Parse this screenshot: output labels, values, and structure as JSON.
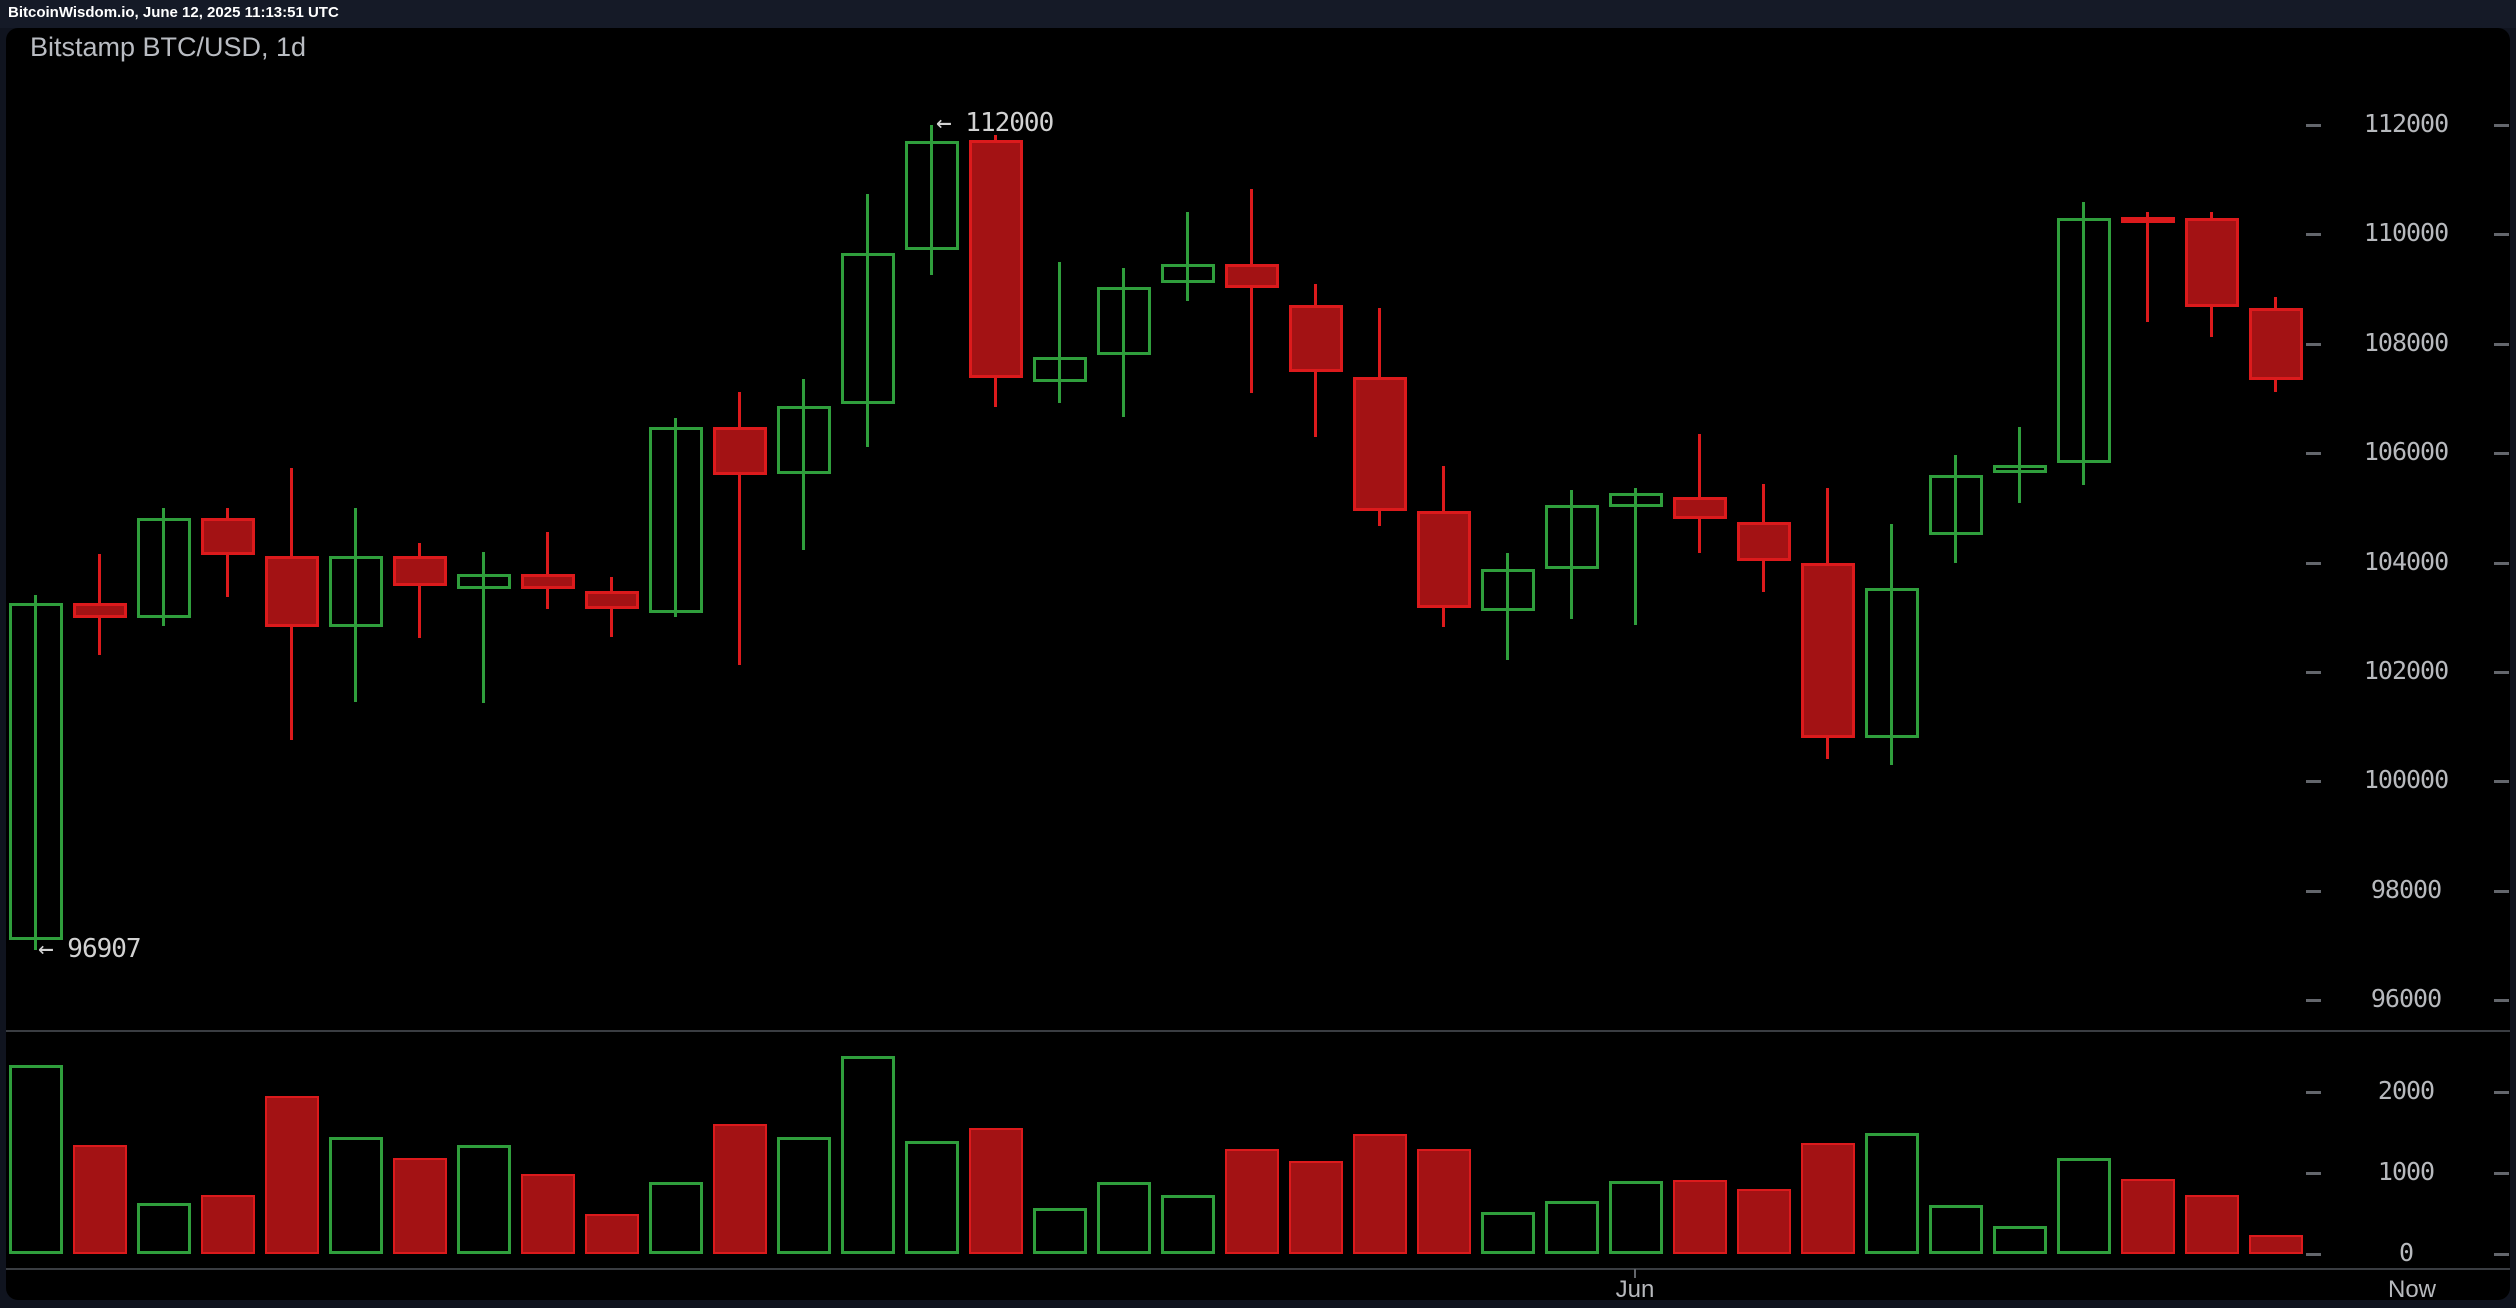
{
  "header": {
    "title": "BitcoinWisdom.io, June 12, 2025 11:13:51 UTC"
  },
  "chart": {
    "title": "Bitstamp BTC/USD, 1d"
  },
  "axes": {
    "price_ticks": [
      "112000",
      "110000",
      "108000",
      "106000",
      "104000",
      "102000",
      "100000",
      "98000",
      "96000"
    ],
    "volume_ticks": [
      "2000",
      "1000",
      "0"
    ],
    "x_labels": [
      "Jun",
      "Now"
    ]
  },
  "annotations": {
    "high_label": "← 112000",
    "low_label": "← 96907",
    "high_value": 112000,
    "low_value": 96907
  },
  "colors": {
    "page_background": "#10141f",
    "topbar_background": "#151a27",
    "panel_background": "#000000",
    "green": "#2f9e3c",
    "red_stroke": "#dc1a1c",
    "red_fill": "#a31214",
    "axis_text": "#b7b9bd",
    "title_text": "#b9bcc2",
    "header_text": "#ffffff",
    "grid_line": "#3a3d42",
    "tick_mark": "#63666c",
    "annotation_text": "#d2d2d2"
  },
  "chart_data": {
    "type": "candlestick",
    "exchange_pair_interval": "Bitstamp BTC/USD, 1d",
    "price_axis": {
      "min": 96000,
      "max": 112000,
      "step": 2000
    },
    "volume_axis": {
      "min": 0,
      "max": 2000,
      "step": 1000
    },
    "x_axis": {
      "month_label": "Jun",
      "now_label": "Now"
    },
    "high_annotation": 112000,
    "low_annotation": 96907,
    "columns": [
      "open",
      "high",
      "low",
      "close",
      "volume"
    ],
    "candles": [
      [
        97100,
        103410,
        96907,
        103260,
        2330
      ],
      [
        103260,
        104160,
        102310,
        102990,
        1350
      ],
      [
        102990,
        105000,
        102840,
        104810,
        630
      ],
      [
        104810,
        105000,
        103370,
        104140,
        730
      ],
      [
        104120,
        105730,
        100750,
        102820,
        1950
      ],
      [
        102820,
        105000,
        101450,
        104120,
        1440
      ],
      [
        104120,
        104360,
        102620,
        103570,
        1180
      ],
      [
        103520,
        104190,
        101430,
        103790,
        1350
      ],
      [
        103790,
        104560,
        103150,
        103520,
        990
      ],
      [
        103480,
        103740,
        102640,
        103150,
        500
      ],
      [
        103080,
        106640,
        103000,
        106480,
        890
      ],
      [
        106480,
        107120,
        102130,
        105600,
        1600
      ],
      [
        105620,
        107360,
        104230,
        106860,
        1450
      ],
      [
        106900,
        110740,
        106110,
        109660,
        2450
      ],
      [
        109710,
        112000,
        109260,
        111710,
        1400
      ],
      [
        111730,
        111820,
        106840,
        107370,
        1550
      ],
      [
        107300,
        109500,
        106920,
        107760,
        570
      ],
      [
        107790,
        109390,
        106660,
        109040,
        890
      ],
      [
        109110,
        110410,
        108780,
        109460,
        730
      ],
      [
        109460,
        110830,
        107100,
        109020,
        1300
      ],
      [
        108710,
        109090,
        106300,
        107480,
        1150
      ],
      [
        107390,
        108650,
        104670,
        104940,
        1480
      ],
      [
        104940,
        105770,
        102820,
        103170,
        1300
      ],
      [
        103110,
        104170,
        102220,
        103880,
        520
      ],
      [
        103880,
        105330,
        102970,
        105050,
        660
      ],
      [
        105010,
        105360,
        102860,
        105270,
        900
      ],
      [
        105200,
        106350,
        104170,
        104800,
        910
      ],
      [
        104740,
        105440,
        103460,
        104030,
        800
      ],
      [
        104000,
        105360,
        100400,
        100800,
        1370
      ],
      [
        100800,
        104700,
        100300,
        103530,
        1490
      ],
      [
        104500,
        105970,
        103990,
        105600,
        600
      ],
      [
        105640,
        106480,
        105090,
        105780,
        350
      ],
      [
        105820,
        110590,
        105420,
        110300,
        1180
      ],
      [
        110320,
        110410,
        108400,
        110260,
        930
      ],
      [
        110300,
        110410,
        108120,
        108670,
        730
      ],
      [
        108650,
        108860,
        107120,
        107340,
        240
      ]
    ]
  }
}
